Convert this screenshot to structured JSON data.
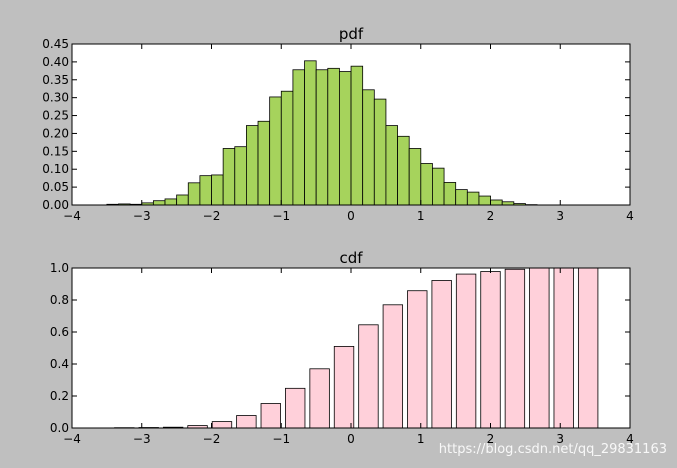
{
  "watermark": "https://blog.csdn.net/qq_29831163",
  "chart_data": [
    {
      "type": "bar",
      "title": "pdf",
      "xlim": [
        -4,
        4
      ],
      "ylim": [
        0,
        0.45
      ],
      "xticks": [
        "−4",
        "−3",
        "−2",
        "−1",
        "0",
        "1",
        "2",
        "3",
        "4"
      ],
      "yticks": [
        "0.00",
        "0.05",
        "0.10",
        "0.15",
        "0.20",
        "0.25",
        "0.30",
        "0.35",
        "0.40",
        "0.45"
      ],
      "bin_start": -3.5,
      "bin_width": 0.1667,
      "values": [
        0.002,
        0.003,
        0.002,
        0.006,
        0.012,
        0.017,
        0.028,
        0.062,
        0.082,
        0.084,
        0.158,
        0.163,
        0.222,
        0.234,
        0.302,
        0.318,
        0.378,
        0.403,
        0.378,
        0.382,
        0.373,
        0.388,
        0.322,
        0.296,
        0.222,
        0.192,
        0.158,
        0.116,
        0.103,
        0.063,
        0.043,
        0.036,
        0.025,
        0.014,
        0.009,
        0.004,
        0.001
      ],
      "color": "#a6d35c",
      "grid": false
    },
    {
      "type": "bar",
      "title": "cdf",
      "xlim": [
        -4,
        4
      ],
      "ylim": [
        0,
        1.0
      ],
      "xticks": [
        "−4",
        "−3",
        "−2",
        "−1",
        "0",
        "1",
        "2",
        "3",
        "4"
      ],
      "yticks": [
        "0.0",
        "0.2",
        "0.4",
        "0.6",
        "0.8",
        "1.0"
      ],
      "x": [
        -3.25,
        -2.9,
        -2.55,
        -2.2,
        -1.85,
        -1.5,
        -1.15,
        -0.8,
        -0.45,
        -0.1,
        0.25,
        0.6,
        0.95,
        1.3,
        1.65,
        2.0,
        2.35,
        2.7,
        3.05,
        3.4
      ],
      "bar_width": 0.28,
      "values": [
        0.002,
        0.003,
        0.005,
        0.015,
        0.04,
        0.078,
        0.153,
        0.248,
        0.37,
        0.51,
        0.645,
        0.77,
        0.858,
        0.922,
        0.962,
        0.978,
        0.992,
        1.0,
        1.0,
        1.0
      ],
      "color": "#ffd0da",
      "grid": false
    }
  ]
}
